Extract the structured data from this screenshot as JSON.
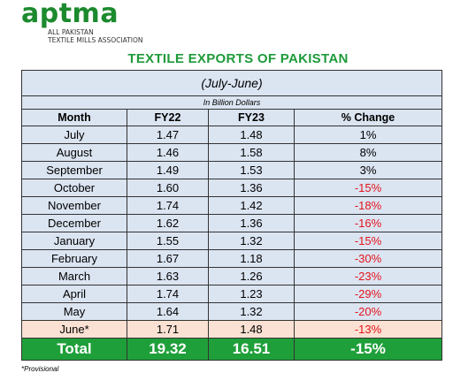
{
  "logo": {
    "wordmark": "aptma",
    "subline1": "ALL PAKISTAN",
    "subline2": "TEXTILE MILLS ASSOCIATION",
    "color": "#1c8a2e"
  },
  "title": "TEXTILE EXPORTS OF PAKISTAN",
  "period": "(July-June)",
  "unit": "In Billion Dollars",
  "columns": [
    "Month",
    "FY22",
    "FY23",
    "% Change"
  ],
  "rows": [
    {
      "month": "July",
      "fy22": "1.47",
      "fy23": "1.48",
      "change": "1%"
    },
    {
      "month": "August",
      "fy22": "1.46",
      "fy23": "1.58",
      "change": "8%"
    },
    {
      "month": "September",
      "fy22": "1.49",
      "fy23": "1.53",
      "change": "3%"
    },
    {
      "month": "October",
      "fy22": "1.60",
      "fy23": "1.36",
      "change": "-15%"
    },
    {
      "month": "November",
      "fy22": "1.74",
      "fy23": "1.42",
      "change": "-18%"
    },
    {
      "month": "December",
      "fy22": "1.62",
      "fy23": "1.36",
      "change": "-16%"
    },
    {
      "month": "January",
      "fy22": "1.55",
      "fy23": "1.32",
      "change": "-15%"
    },
    {
      "month": "February",
      "fy22": "1.67",
      "fy23": "1.18",
      "change": "-30%"
    },
    {
      "month": "March",
      "fy22": "1.63",
      "fy23": "1.26",
      "change": "-23%"
    },
    {
      "month": "April",
      "fy22": "1.74",
      "fy23": "1.23",
      "change": "-29%"
    },
    {
      "month": "May",
      "fy22": "1.64",
      "fy23": "1.32",
      "change": "-20%"
    },
    {
      "month": "June*",
      "fy22": "1.71",
      "fy23": "1.48",
      "change": "-13%"
    }
  ],
  "total": {
    "label": "Total",
    "fy22": "19.32",
    "fy23": "16.51",
    "change": "-15%"
  },
  "footnote": "*Provisional",
  "colors": {
    "title_green": "#1e9a3a",
    "table_blue": "#dbe4f1",
    "provisional_peach": "#fbe1d3",
    "total_green": "#1f9f3a",
    "negative_red": "#e3141c"
  }
}
